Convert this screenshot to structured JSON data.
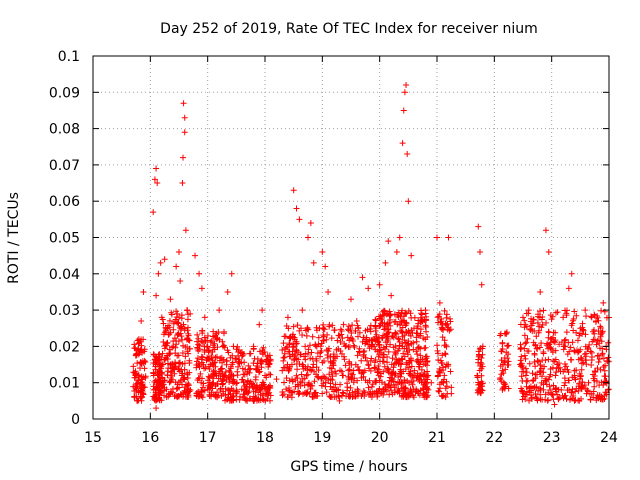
{
  "chart_data": {
    "type": "scatter",
    "title": "Day 252 of 2019, Rate Of TEC Index for receiver nium",
    "xlabel": "GPS time / hours",
    "ylabel": "ROTI / TECUs",
    "xlim": [
      15,
      24
    ],
    "ylim": [
      0,
      0.1
    ],
    "x_ticks": [
      "15",
      "16",
      "17",
      "18",
      "19",
      "20",
      "21",
      "22",
      "23",
      "24"
    ],
    "y_ticks": [
      "0",
      "0.01",
      "0.02",
      "0.03",
      "0.04",
      "0.05",
      "0.06",
      "0.07",
      "0.08",
      "0.09",
      "0.1"
    ],
    "grid": true,
    "marker": "+",
    "color": "#ff0000",
    "series": [
      {
        "points": [
          [
            15.72,
            0.006
          ],
          [
            15.74,
            0.012
          ],
          [
            15.76,
            0.018
          ],
          [
            15.78,
            0.009
          ],
          [
            15.8,
            0.022
          ],
          [
            15.82,
            0.014
          ],
          [
            15.84,
            0.027
          ],
          [
            15.86,
            0.011
          ],
          [
            15.88,
            0.035
          ],
          [
            15.9,
            0.016
          ],
          [
            16.05,
            0.057
          ],
          [
            16.08,
            0.066
          ],
          [
            16.1,
            0.069
          ],
          [
            16.12,
            0.065
          ],
          [
            16.1,
            0.034
          ],
          [
            16.14,
            0.04
          ],
          [
            16.18,
            0.043
          ],
          [
            16.2,
            0.028
          ],
          [
            16.06,
            0.012
          ],
          [
            16.1,
            0.003
          ],
          [
            16.15,
            0.008
          ],
          [
            16.22,
            0.015
          ],
          [
            16.25,
            0.044
          ],
          [
            16.3,
            0.025
          ],
          [
            16.35,
            0.033
          ],
          [
            16.4,
            0.02
          ],
          [
            16.45,
            0.042
          ],
          [
            16.5,
            0.046
          ],
          [
            16.52,
            0.038
          ],
          [
            16.55,
            0.012
          ],
          [
            16.58,
            0.087
          ],
          [
            16.6,
            0.083
          ],
          [
            16.6,
            0.079
          ],
          [
            16.57,
            0.072
          ],
          [
            16.56,
            0.065
          ],
          [
            16.62,
            0.052
          ],
          [
            16.64,
            0.03
          ],
          [
            16.66,
            0.018
          ],
          [
            16.7,
            0.008
          ],
          [
            16.78,
            0.045
          ],
          [
            16.85,
            0.04
          ],
          [
            16.9,
            0.036
          ],
          [
            16.95,
            0.028
          ],
          [
            17.0,
            0.02
          ],
          [
            17.05,
            0.015
          ],
          [
            17.1,
            0.01
          ],
          [
            17.15,
            0.022
          ],
          [
            17.2,
            0.03
          ],
          [
            17.3,
            0.012
          ],
          [
            17.35,
            0.035
          ],
          [
            17.42,
            0.04
          ],
          [
            17.45,
            0.02
          ],
          [
            17.5,
            0.008
          ],
          [
            17.6,
            0.018
          ],
          [
            17.7,
            0.013
          ],
          [
            17.8,
            0.02
          ],
          [
            17.9,
            0.026
          ],
          [
            17.95,
            0.03
          ],
          [
            18.0,
            0.012
          ],
          [
            18.05,
            0.007
          ],
          [
            18.1,
            0.016
          ],
          [
            18.2,
            0.011
          ],
          [
            18.3,
            0.019
          ],
          [
            18.4,
            0.028
          ],
          [
            18.5,
            0.063
          ],
          [
            18.55,
            0.058
          ],
          [
            18.6,
            0.055
          ],
          [
            18.65,
            0.03
          ],
          [
            18.7,
            0.02
          ],
          [
            18.75,
            0.05
          ],
          [
            18.8,
            0.054
          ],
          [
            18.85,
            0.043
          ],
          [
            18.9,
            0.016
          ],
          [
            18.95,
            0.025
          ],
          [
            19.0,
            0.046
          ],
          [
            19.05,
            0.042
          ],
          [
            19.1,
            0.035
          ],
          [
            19.2,
            0.016
          ],
          [
            19.3,
            0.005
          ],
          [
            19.4,
            0.02
          ],
          [
            19.5,
            0.033
          ],
          [
            19.6,
            0.027
          ],
          [
            19.7,
            0.039
          ],
          [
            19.8,
            0.036
          ],
          [
            19.9,
            0.022
          ],
          [
            20.0,
            0.037
          ],
          [
            20.1,
            0.043
          ],
          [
            20.15,
            0.049
          ],
          [
            20.2,
            0.034
          ],
          [
            20.3,
            0.046
          ],
          [
            20.35,
            0.05
          ],
          [
            20.4,
            0.076
          ],
          [
            20.42,
            0.085
          ],
          [
            20.44,
            0.09
          ],
          [
            20.46,
            0.092
          ],
          [
            20.48,
            0.073
          ],
          [
            20.5,
            0.06
          ],
          [
            20.55,
            0.045
          ],
          [
            20.6,
            0.025
          ],
          [
            20.7,
            0.015
          ],
          [
            20.8,
            0.03
          ],
          [
            20.9,
            0.01
          ],
          [
            21.0,
            0.05
          ],
          [
            21.05,
            0.032
          ],
          [
            21.1,
            0.025
          ],
          [
            21.2,
            0.05
          ],
          [
            21.25,
            0.007
          ],
          [
            21.7,
            0.012
          ],
          [
            21.72,
            0.053
          ],
          [
            21.75,
            0.046
          ],
          [
            21.78,
            0.037
          ],
          [
            21.8,
            0.02
          ],
          [
            22.1,
            0.023
          ],
          [
            22.15,
            0.015
          ],
          [
            22.2,
            0.009
          ],
          [
            22.5,
            0.028
          ],
          [
            22.55,
            0.012
          ],
          [
            22.6,
            0.03
          ],
          [
            22.7,
            0.018
          ],
          [
            22.8,
            0.035
          ],
          [
            22.9,
            0.052
          ],
          [
            22.95,
            0.046
          ],
          [
            23.0,
            0.022
          ],
          [
            23.05,
            0.004
          ],
          [
            23.1,
            0.015
          ],
          [
            23.2,
            0.028
          ],
          [
            23.3,
            0.036
          ],
          [
            23.35,
            0.04
          ],
          [
            23.4,
            0.012
          ],
          [
            23.5,
            0.025
          ],
          [
            23.6,
            0.018
          ],
          [
            23.7,
            0.028
          ],
          [
            23.8,
            0.014
          ],
          [
            23.9,
            0.032
          ],
          [
            23.95,
            0.02
          ]
        ],
        "dense_clusters": [
          {
            "x_range": [
              15.7,
              15.92
            ],
            "y_range": [
              0.005,
              0.022
            ],
            "n": 90
          },
          {
            "x_range": [
              16.05,
              16.2
            ],
            "y_range": [
              0.005,
              0.018
            ],
            "n": 90
          },
          {
            "x_range": [
              16.2,
              16.7
            ],
            "y_range": [
              0.006,
              0.03
            ],
            "n": 200
          },
          {
            "x_range": [
              16.8,
              17.3
            ],
            "y_range": [
              0.006,
              0.025
            ],
            "n": 170
          },
          {
            "x_range": [
              17.3,
              18.1
            ],
            "y_range": [
              0.005,
              0.02
            ],
            "n": 220
          },
          {
            "x_range": [
              18.3,
              19.9
            ],
            "y_range": [
              0.006,
              0.026
            ],
            "n": 400
          },
          {
            "x_range": [
              19.9,
              20.85
            ],
            "y_range": [
              0.006,
              0.03
            ],
            "n": 420
          },
          {
            "x_range": [
              21.0,
              21.25
            ],
            "y_range": [
              0.006,
              0.03
            ],
            "n": 70
          },
          {
            "x_range": [
              21.7,
              21.8
            ],
            "y_range": [
              0.007,
              0.02
            ],
            "n": 40
          },
          {
            "x_range": [
              22.1,
              22.25
            ],
            "y_range": [
              0.008,
              0.024
            ],
            "n": 40
          },
          {
            "x_range": [
              22.45,
              24.0
            ],
            "y_range": [
              0.005,
              0.03
            ],
            "n": 420
          }
        ]
      }
    ]
  }
}
